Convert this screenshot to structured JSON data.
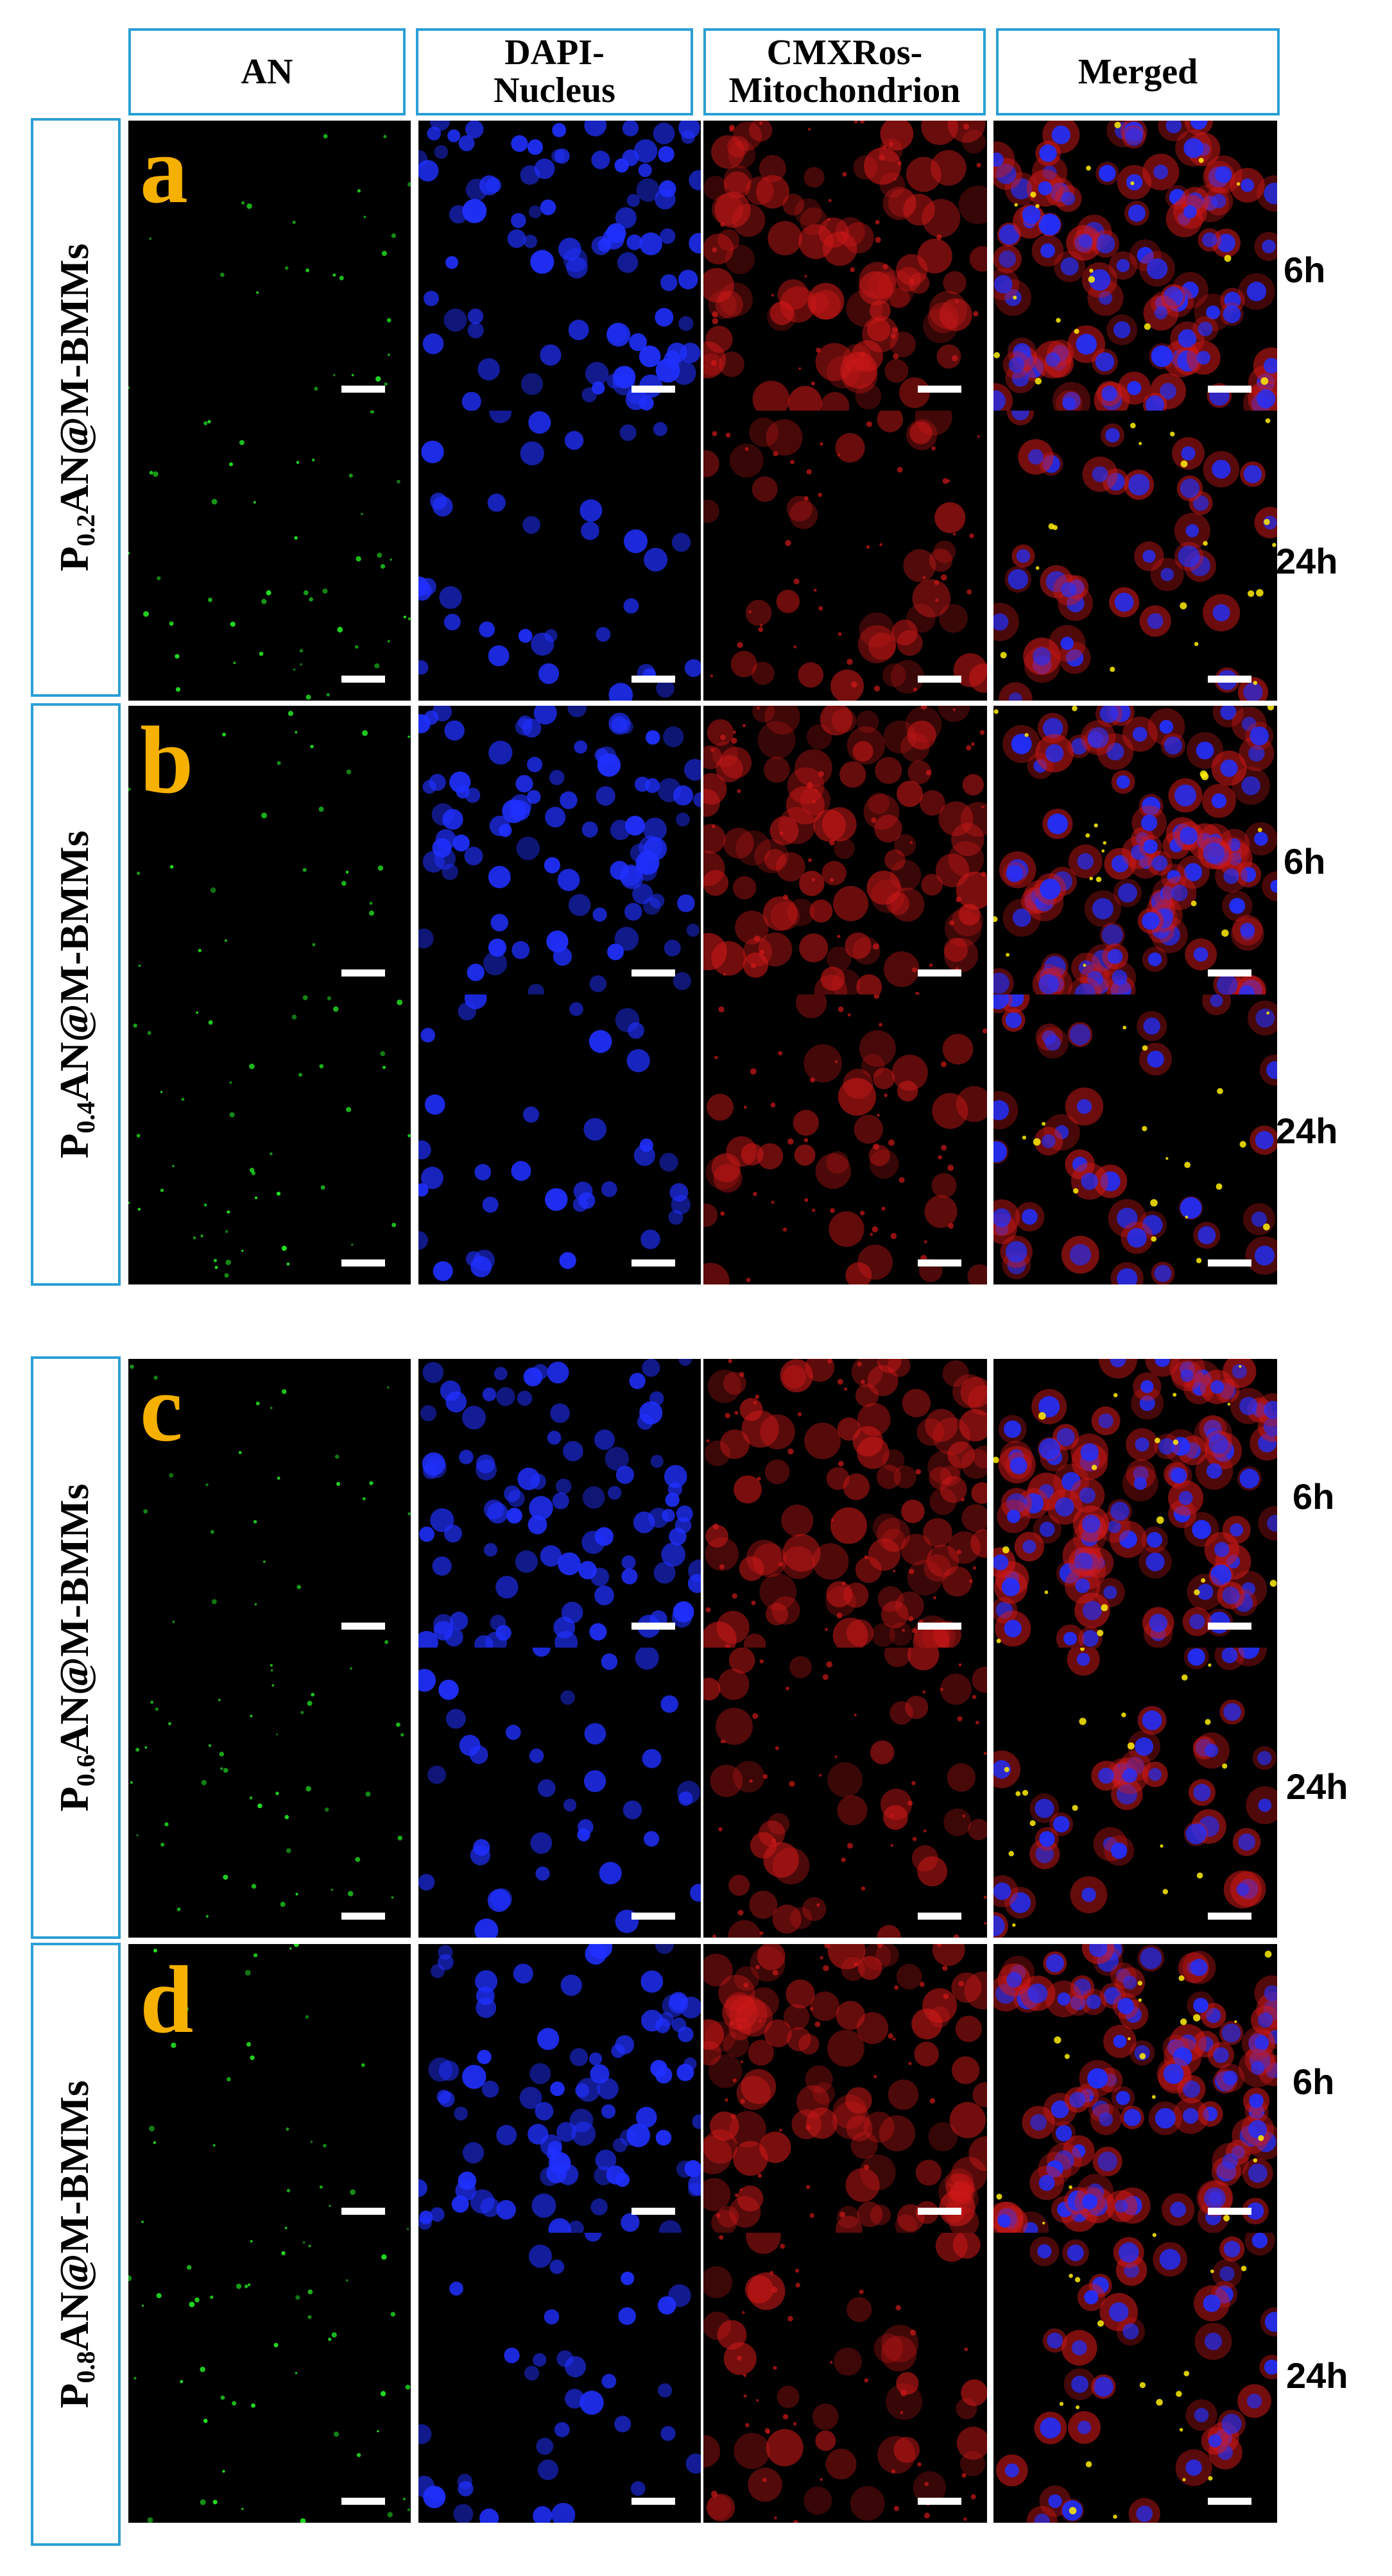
{
  "columns": [
    {
      "lines": [
        "AN"
      ]
    },
    {
      "lines": [
        "DAPI-",
        "Nucleus"
      ]
    },
    {
      "lines": [
        "CMXRos-",
        "Mitochondrion"
      ]
    },
    {
      "lines": [
        "Merged"
      ]
    }
  ],
  "groups": [
    {
      "letter": "a",
      "label_prefix": "P",
      "label_sub": "0.2",
      "label_suffix": "AN@M-BMMs",
      "times": [
        "6h",
        "24h"
      ]
    },
    {
      "letter": "b",
      "label_prefix": "P",
      "label_sub": "0.4",
      "label_suffix": "AN@M-BMMs",
      "times": [
        "6h",
        "24h"
      ]
    },
    {
      "letter": "c",
      "label_prefix": "P",
      "label_sub": "0.6",
      "label_suffix": "AN@M-BMMs",
      "times": [
        "6h",
        "24h"
      ]
    },
    {
      "letter": "d",
      "label_prefix": "P",
      "label_sub": "0.8",
      "label_suffix": "AN@M-BMMs",
      "times": [
        "6h",
        "24h"
      ]
    }
  ],
  "colors": {
    "header_border": "#2a9fd6",
    "panel_letter": "#f5b000",
    "an_channel": "#22e022",
    "dapi_channel": "#2030ff",
    "mito_channel": "#d01818",
    "overlap": "#ffee00"
  }
}
